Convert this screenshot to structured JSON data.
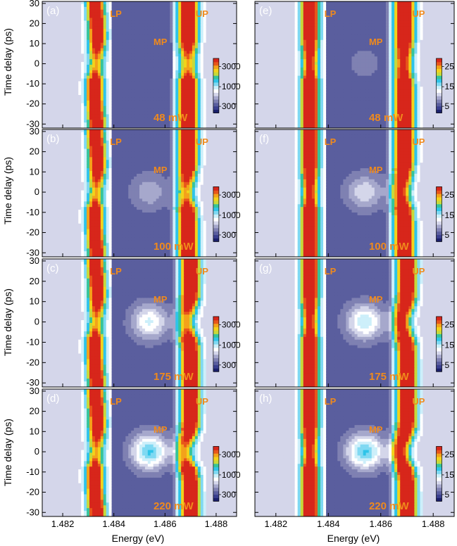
{
  "chart_data": {
    "type": "heatmap",
    "xlabel": "Energy (eV)",
    "ylabel": "Time delay (ps)",
    "xlim": [
      1.4812,
      1.4888
    ],
    "ylim": [
      -32,
      31
    ],
    "xticks": [
      1.482,
      1.484,
      1.486,
      1.488
    ],
    "yticks": [
      30,
      20,
      10,
      0,
      -10,
      -20,
      -30
    ],
    "peak_labels": [
      "LP",
      "MP",
      "UP"
    ],
    "colormap": [
      "#1a1f6b",
      "#3a3f8f",
      "#5a5e9e",
      "#7f81b2",
      "#a6a8cc",
      "#d4d6ea",
      "#ffffff",
      "#cdeffa",
      "#7fd9f2",
      "#2ec4e8",
      "#36c49a",
      "#c7d93a",
      "#f3d21b",
      "#f3a21b",
      "#e8561b",
      "#d7261b"
    ],
    "label_color": "#f08a1c",
    "panels": [
      {
        "tag": "(a)",
        "power": "48 mW",
        "colorbar_ticks": [
          "3000",
          "1000",
          "300"
        ],
        "kind": "experiment",
        "lp_center": 1.4833,
        "up_center": 1.4869,
        "gap_depth": 0.0
      },
      {
        "tag": "(b)",
        "power": "100 mW",
        "colorbar_ticks": [
          "3000",
          "1000",
          "300"
        ],
        "kind": "experiment",
        "lp_center": 1.4833,
        "up_center": 1.4869,
        "gap_depth": 0.35
      },
      {
        "tag": "(c)",
        "power": "175 mW",
        "colorbar_ticks": [
          "3000",
          "1000",
          "300"
        ],
        "kind": "experiment",
        "lp_center": 1.4833,
        "up_center": 1.487,
        "gap_depth": 0.7
      },
      {
        "tag": "(d)",
        "power": "220 mW",
        "colorbar_ticks": [
          "3000",
          "1000",
          "300"
        ],
        "kind": "experiment",
        "lp_center": 1.4833,
        "up_center": 1.487,
        "gap_depth": 1.0
      },
      {
        "tag": "(e)",
        "power": "48 mW",
        "colorbar_ticks": [
          "25",
          "15",
          "5"
        ],
        "kind": "theory",
        "lp_center": 1.4833,
        "up_center": 1.4869,
        "gap_depth": 0.15
      },
      {
        "tag": "(f)",
        "power": "100 mW",
        "colorbar_ticks": [
          "25",
          "15",
          "5"
        ],
        "kind": "theory",
        "lp_center": 1.4833,
        "up_center": 1.4869,
        "gap_depth": 0.5
      },
      {
        "tag": "(g)",
        "power": "175 mW",
        "colorbar_ticks": [
          "25",
          "15",
          "5"
        ],
        "kind": "theory",
        "lp_center": 1.4833,
        "up_center": 1.487,
        "gap_depth": 0.8
      },
      {
        "tag": "(h)",
        "power": "220 mW",
        "colorbar_ticks": [
          "25",
          "15",
          "5"
        ],
        "kind": "theory",
        "lp_center": 1.4833,
        "up_center": 1.487,
        "gap_depth": 1.0
      }
    ]
  }
}
